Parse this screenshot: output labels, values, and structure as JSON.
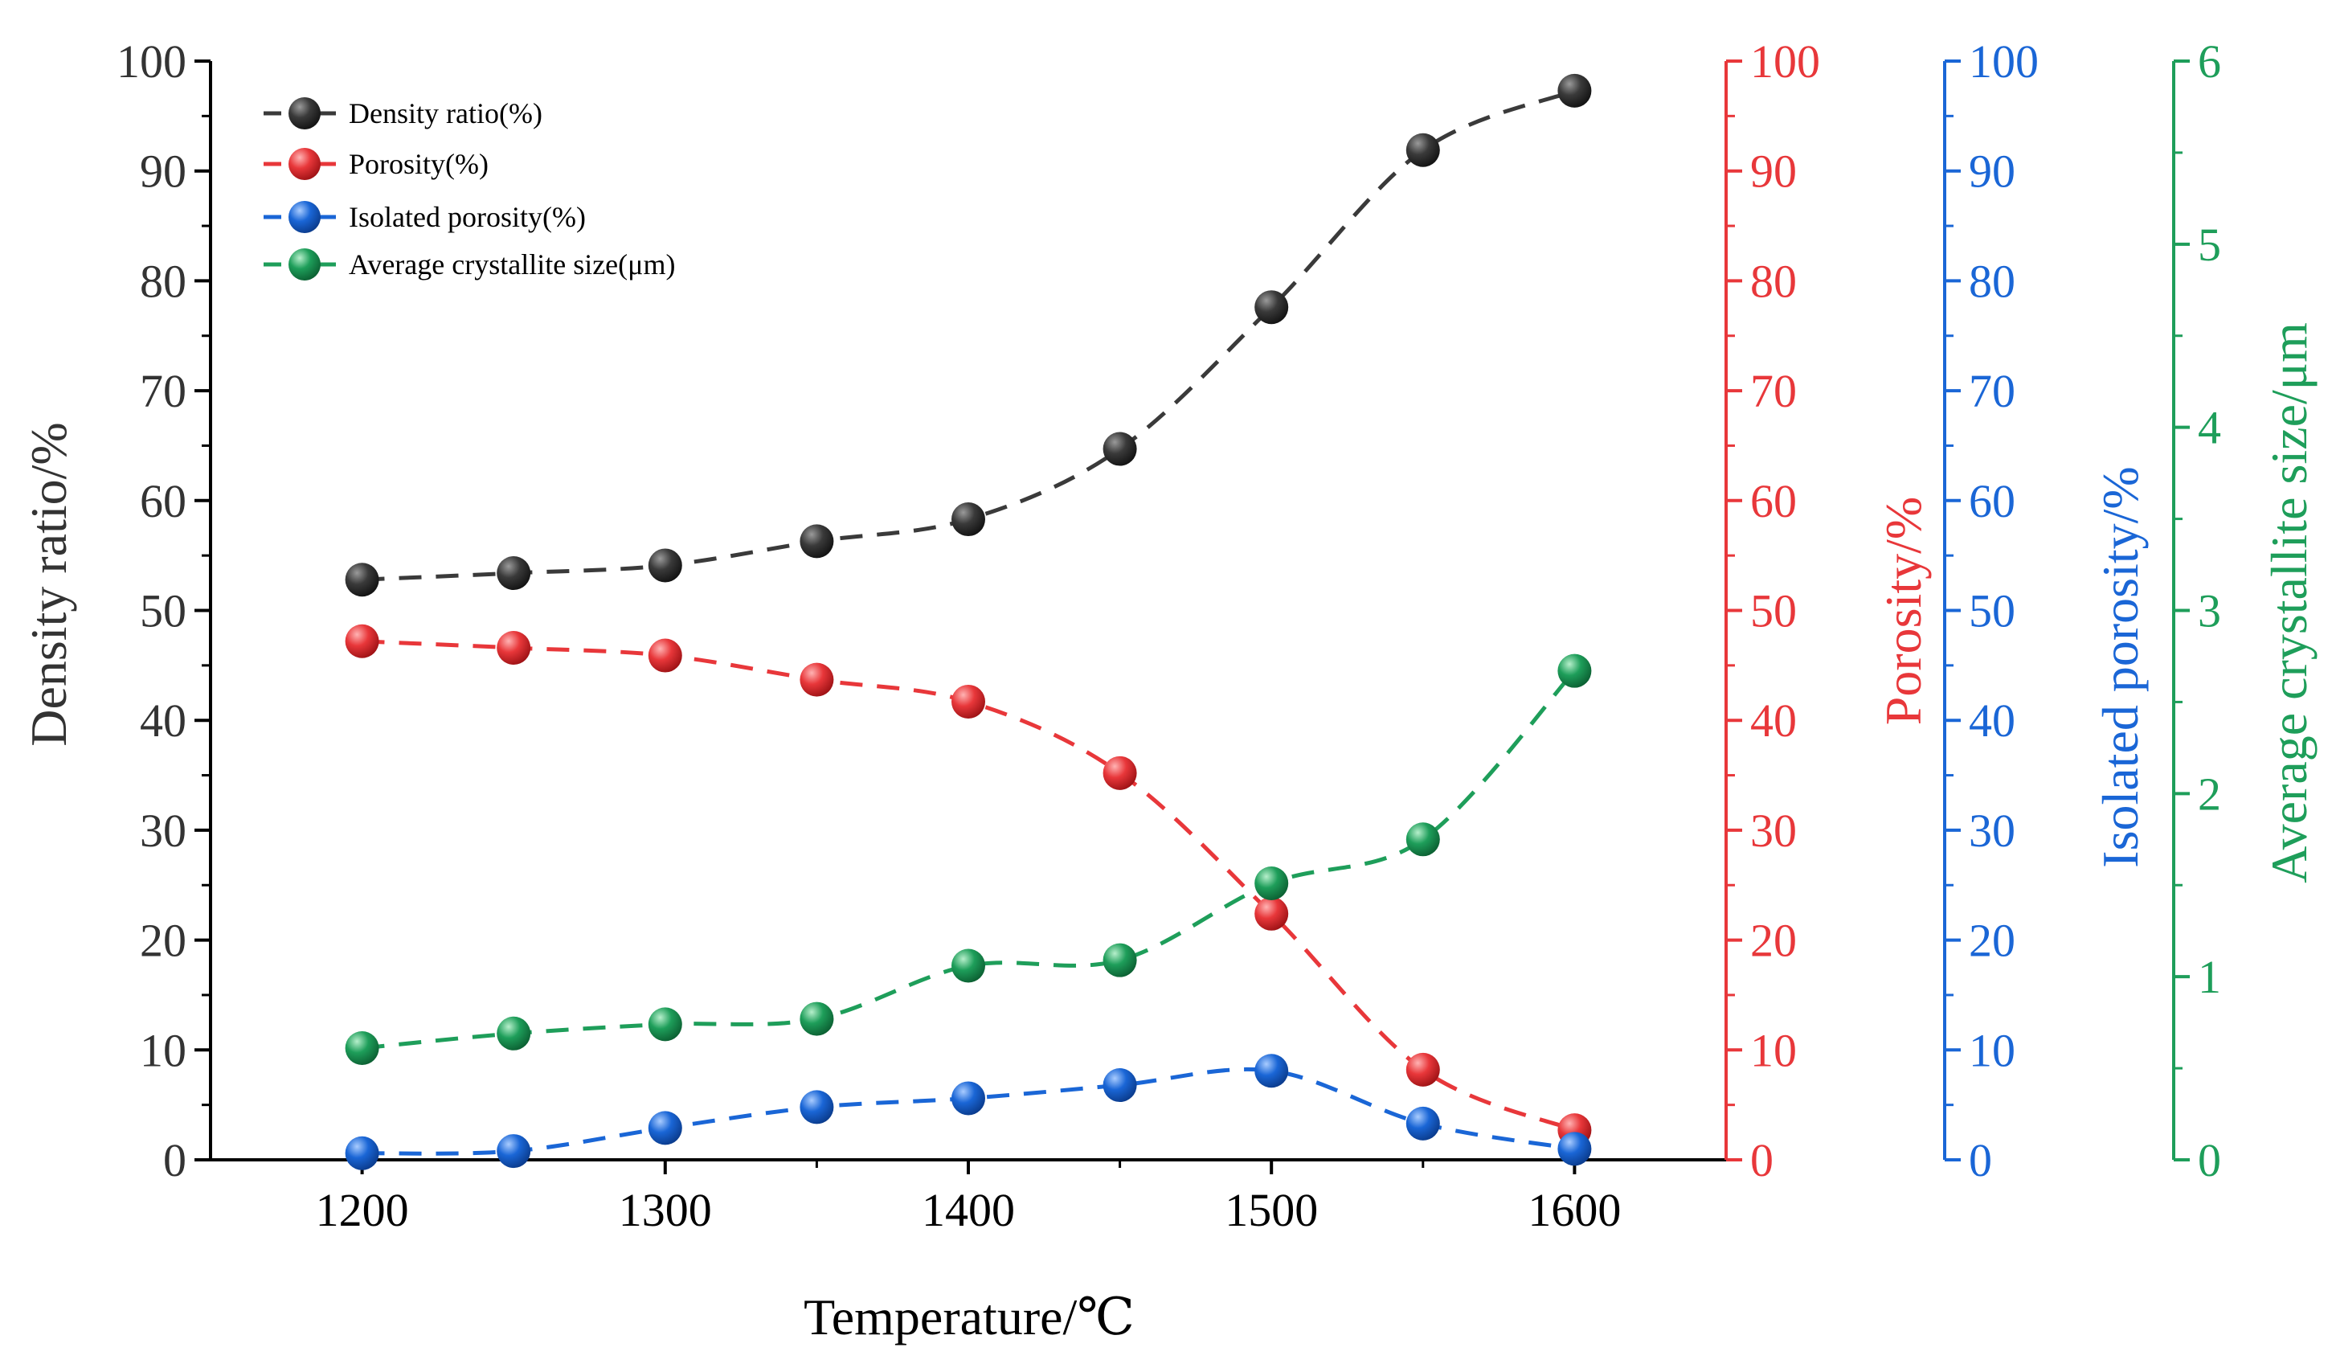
{
  "chart_data": {
    "type": "line",
    "xlabel": "Temperature/℃",
    "x": [
      1200,
      1250,
      1300,
      1350,
      1400,
      1450,
      1500,
      1550,
      1600
    ],
    "xlim": [
      1150,
      1650
    ],
    "xticks": [
      1200,
      1300,
      1400,
      1500,
      1600
    ],
    "axes": {
      "density": {
        "label": "Density ratio/%",
        "ylim": [
          0,
          100
        ],
        "ticks": [
          0,
          10,
          20,
          30,
          40,
          50,
          60,
          70,
          80,
          90,
          100
        ],
        "color": "#3a3a3a"
      },
      "porosity": {
        "label": "Porosity/%",
        "ylim": [
          0,
          100
        ],
        "ticks": [
          0,
          10,
          20,
          30,
          40,
          50,
          60,
          70,
          80,
          90,
          100
        ],
        "color": "#e8373a"
      },
      "isolated": {
        "label": "Isolated porosity/%",
        "ylim": [
          0,
          100
        ],
        "ticks": [
          0,
          10,
          20,
          30,
          40,
          50,
          60,
          70,
          80,
          90,
          100
        ],
        "color": "#1a66d6"
      },
      "crystallite": {
        "label": "Average crystallite size/μm",
        "ylim": [
          0,
          6
        ],
        "ticks": [
          0,
          1,
          2,
          3,
          4,
          5,
          6
        ],
        "color": "#1e9e5a"
      }
    },
    "series": [
      {
        "name": "Density ratio(%)",
        "axis": "density",
        "color": "#3a3a3a",
        "values": [
          52.8,
          53.4,
          54.1,
          56.3,
          58.3,
          64.7,
          77.6,
          91.9,
          97.3
        ]
      },
      {
        "name": "Porosity(%)",
        "axis": "porosity",
        "color": "#e8373a",
        "values": [
          47.2,
          46.6,
          45.9,
          43.7,
          41.7,
          35.2,
          22.4,
          8.2,
          2.7
        ]
      },
      {
        "name": "Isolated porosity(%)",
        "axis": "isolated",
        "color": "#1a66d6",
        "values": [
          0.6,
          0.8,
          2.9,
          4.8,
          5.6,
          6.8,
          8.1,
          3.3,
          1.0
        ]
      },
      {
        "name": "Average crystallite size(μm)",
        "axis": "crystallite",
        "color": "#1e9e5a",
        "values": [
          0.61,
          0.69,
          0.74,
          0.77,
          1.06,
          1.09,
          1.51,
          1.75,
          2.67
        ]
      }
    ]
  }
}
